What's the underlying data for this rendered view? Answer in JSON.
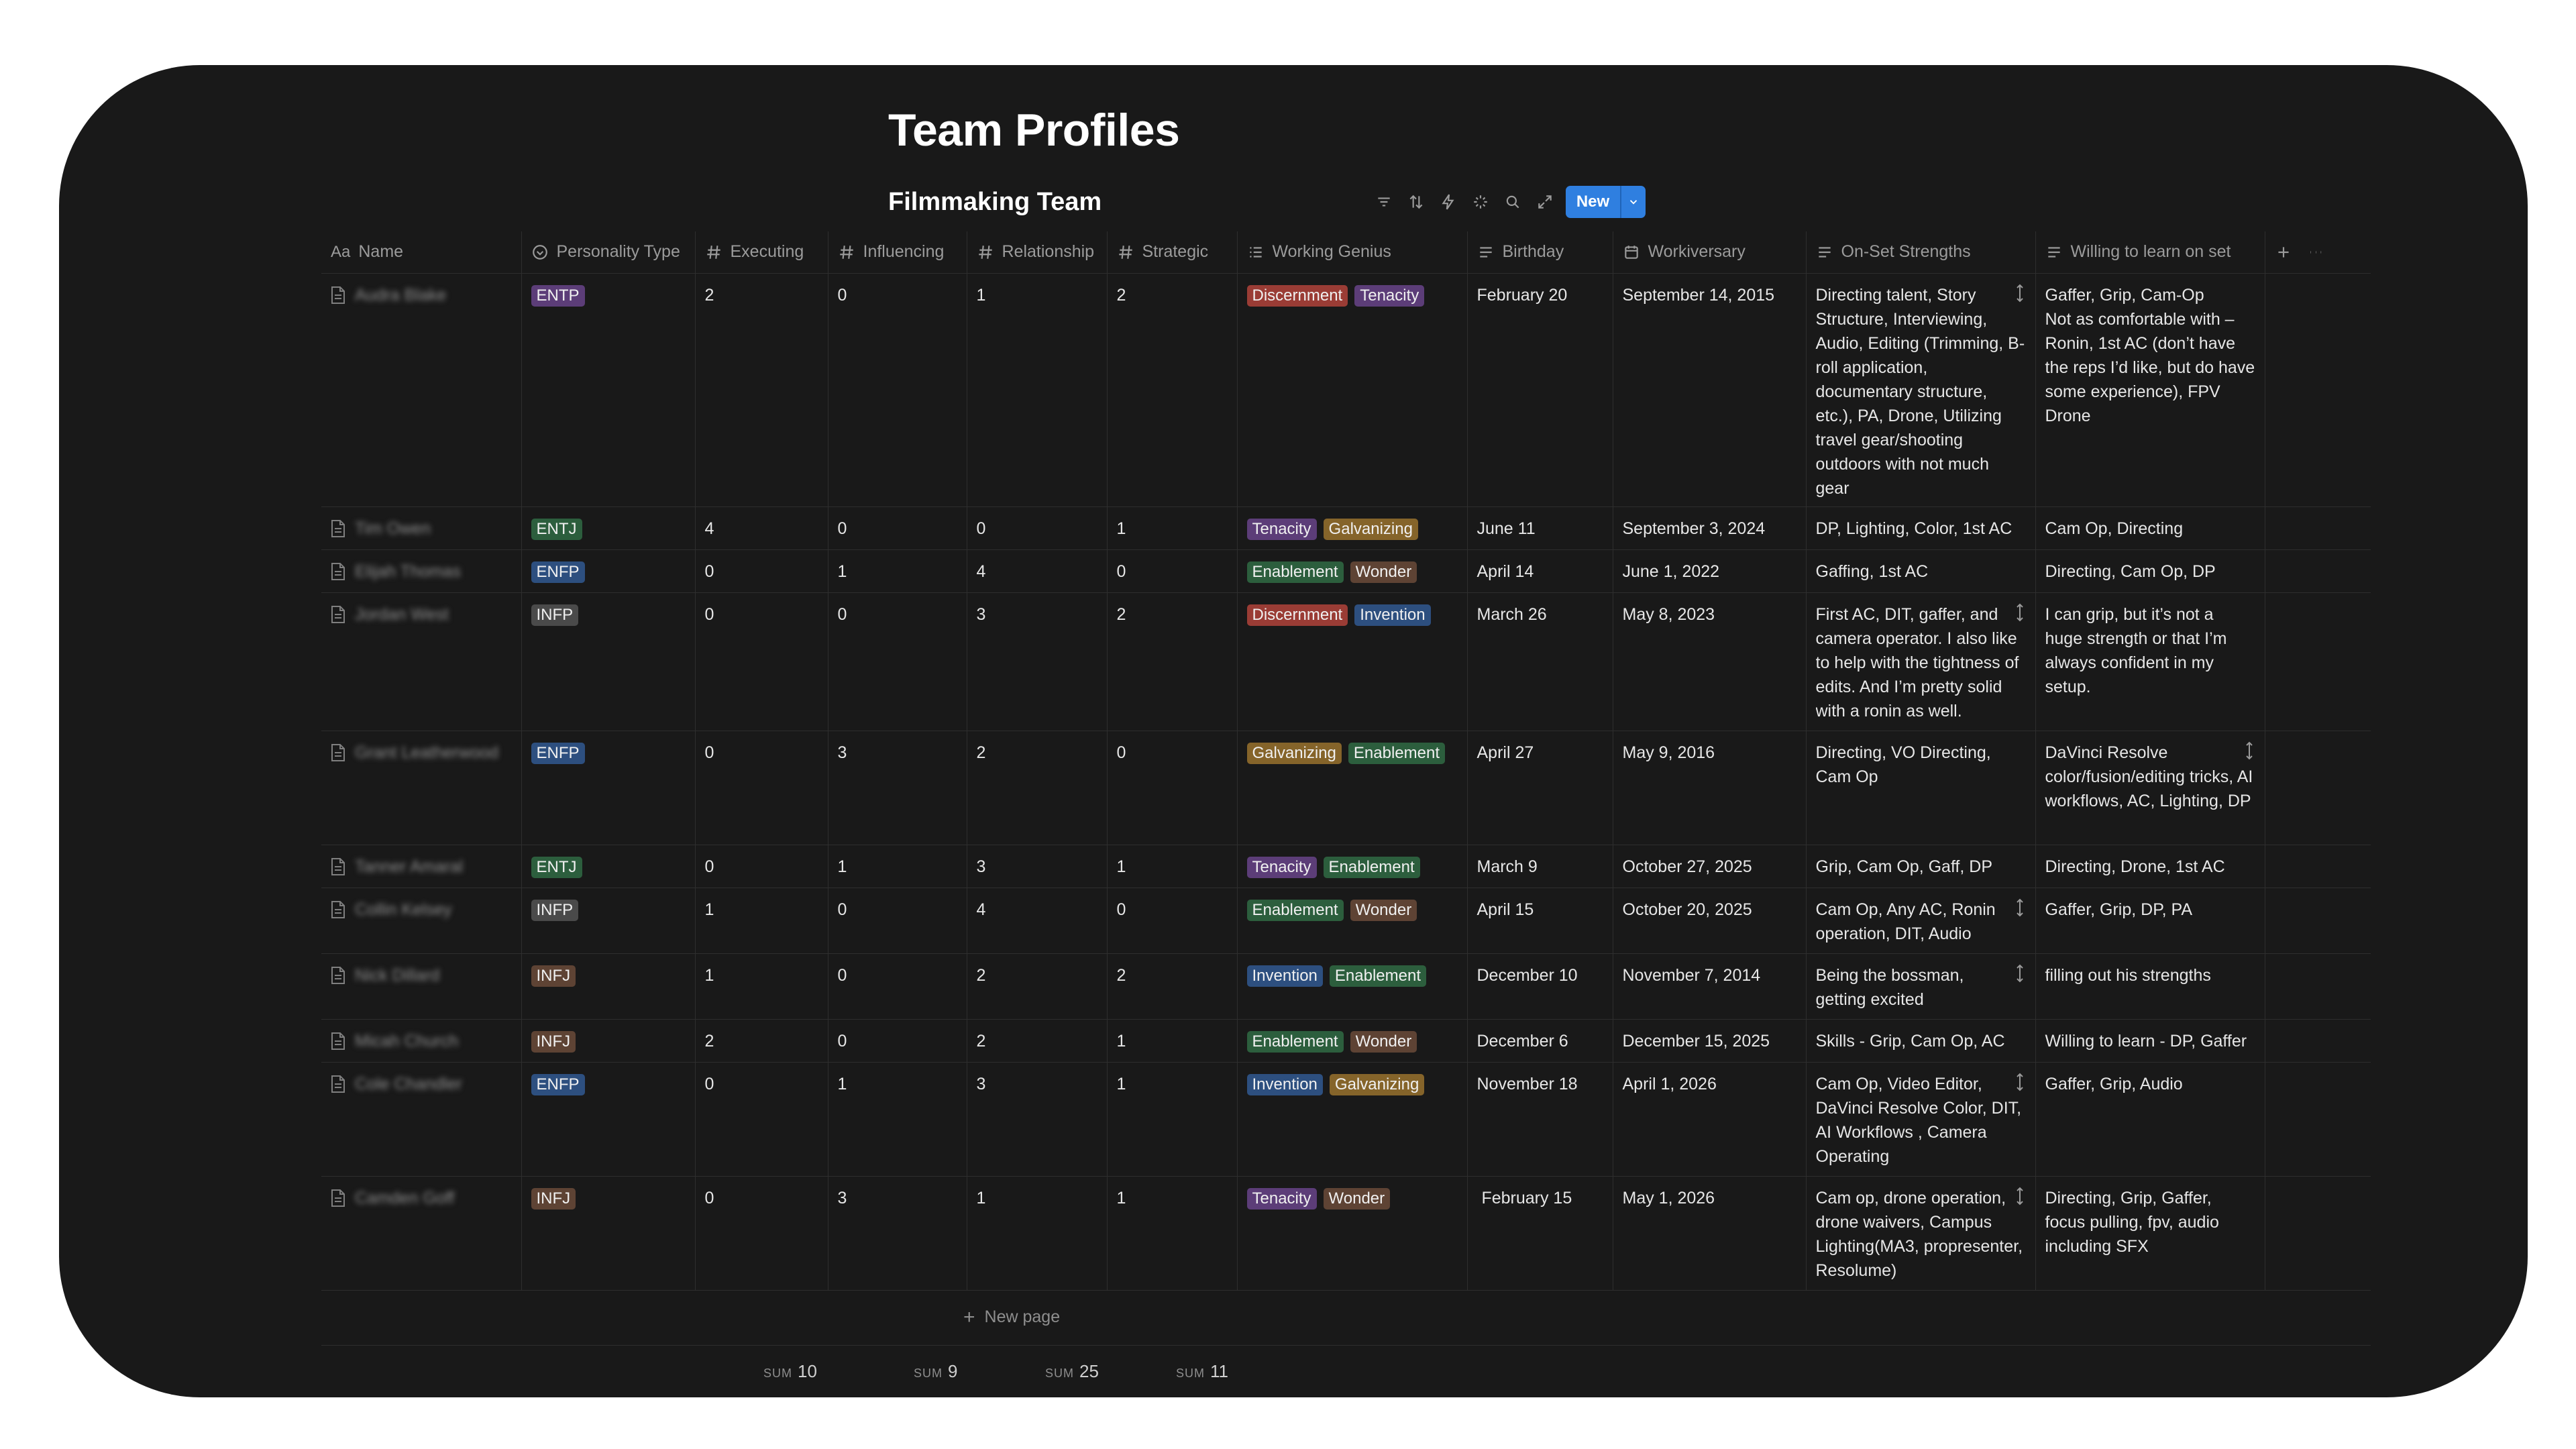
{
  "page": {
    "title": "Team Profiles"
  },
  "view": {
    "title": "Filmmaking Team",
    "new_label": "New"
  },
  "toolbar_icons": [
    "filter-icon",
    "sort-icon",
    "automation-icon",
    "ai-icon",
    "search-icon",
    "expand-icon",
    "settings-icon"
  ],
  "columns": [
    {
      "key": "name",
      "label": "Name",
      "icon": "title-icon"
    },
    {
      "key": "ptype",
      "label": "Personality Type",
      "icon": "select-icon"
    },
    {
      "key": "exec",
      "label": "Executing",
      "icon": "number-icon"
    },
    {
      "key": "infl",
      "label": "Influencing",
      "icon": "number-icon"
    },
    {
      "key": "rel",
      "label": "Relationship",
      "icon": "number-icon"
    },
    {
      "key": "strat",
      "label": "Strategic",
      "icon": "number-icon"
    },
    {
      "key": "genius",
      "label": "Working Genius",
      "icon": "multi-select-icon"
    },
    {
      "key": "bday",
      "label": "Birthday",
      "icon": "text-icon"
    },
    {
      "key": "anniv",
      "label": "Workiversary",
      "icon": "date-icon"
    },
    {
      "key": "strengths",
      "label": "On-Set Strengths",
      "icon": "text-icon"
    },
    {
      "key": "learn",
      "label": "Willing to learn on set",
      "icon": "text-icon"
    }
  ],
  "tag_colors": {
    "ENTP": "#5c3d78",
    "ENTJ": "#2c5e3d",
    "ENFP": "#2d4f7f",
    "INFP": "#4a4a4a",
    "INFJ": "#5e4334",
    "Discernment": "#9a3c35",
    "Tenacity": "#5c3d78",
    "Galvanizing": "#85642a",
    "Enablement": "#2c5e3d",
    "Wonder": "#5e4334",
    "Invention": "#2d4f7f"
  },
  "rows": [
    {
      "name": "Audra Blake",
      "ptype": "ENTP",
      "exec": "2",
      "infl": "0",
      "rel": "1",
      "strat": "2",
      "genius": [
        "Discernment",
        "Tenacity"
      ],
      "bday": "February 20",
      "anniv": "September 14, 2015",
      "strengths": "Directing talent, Story Structure, Interviewing, Audio, Editing (Trimming, B-roll application, documentary structure, etc.), PA, Drone, Utilizing travel gear/shooting outdoors with not much gear",
      "learn": "Gaffer, Grip, Cam-Op\nNot as comfortable with – Ronin, 1st AC (don’t have the reps I’d like, but do have some experience), FPV Drone"
    },
    {
      "name": "Tim Owen",
      "ptype": "ENTJ",
      "exec": "4",
      "infl": "0",
      "rel": "0",
      "strat": "1",
      "genius": [
        "Tenacity",
        "Galvanizing"
      ],
      "bday": "June 11",
      "anniv": "September 3, 2024",
      "strengths": "DP, Lighting, Color, 1st AC",
      "learn": "Cam Op, Directing"
    },
    {
      "name": "Elijah Thomas",
      "ptype": "ENFP",
      "exec": "0",
      "infl": "1",
      "rel": "4",
      "strat": "0",
      "genius": [
        "Enablement",
        "Wonder"
      ],
      "bday": "April 14",
      "anniv": "June 1, 2022",
      "strengths": "Gaffing, 1st AC",
      "learn": "Directing, Cam Op, DP"
    },
    {
      "name": "Jordan West",
      "ptype": "INFP",
      "exec": "0",
      "infl": "0",
      "rel": "3",
      "strat": "2",
      "genius": [
        "Discernment",
        "Invention"
      ],
      "bday": "March 26",
      "anniv": "May 8, 2023",
      "strengths": "First AC, DIT, gaffer, and camera operator. I also like to help with the tightness of edits. And I’m pretty solid with a ronin as well.",
      "learn": "I can grip, but it’s not a huge strength or that I’m always confident in my setup."
    },
    {
      "name": "Grant Leatherwood",
      "ptype": "ENFP",
      "exec": "0",
      "infl": "3",
      "rel": "2",
      "strat": "0",
      "genius": [
        "Galvanizing",
        "Enablement"
      ],
      "bday": "April 27",
      "anniv": "May 9, 2016",
      "strengths": "Directing, VO Directing, Cam Op",
      "learn": "DaVinci Resolve color/fusion/editing tricks, AI workflows, AC, Lighting, DP"
    },
    {
      "name": "Tanner Amaral",
      "ptype": "ENTJ",
      "exec": "0",
      "infl": "1",
      "rel": "3",
      "strat": "1",
      "genius": [
        "Tenacity",
        "Enablement"
      ],
      "bday": "March 9",
      "anniv": "October 27, 2025",
      "strengths": "Grip, Cam Op, Gaff, DP",
      "learn": "Directing, Drone, 1st AC"
    },
    {
      "name": "Collin Kelsey",
      "ptype": "INFP",
      "exec": "1",
      "infl": "0",
      "rel": "4",
      "strat": "0",
      "genius": [
        "Enablement",
        "Wonder"
      ],
      "bday": "April 15",
      "anniv": "October 20, 2025",
      "strengths": "Cam Op, Any AC, Ronin operation, DIT, Audio",
      "learn": "Gaffer, Grip, DP, PA"
    },
    {
      "name": "Nick Dillard",
      "ptype": "INFJ",
      "exec": "1",
      "infl": "0",
      "rel": "2",
      "strat": "2",
      "genius": [
        "Invention",
        "Enablement"
      ],
      "bday": "December 10",
      "anniv": "November 7, 2014",
      "strengths": "Being the bossman, getting excited",
      "learn": "filling out his strengths"
    },
    {
      "name": "Micah Church",
      "ptype": "INFJ",
      "exec": "2",
      "infl": "0",
      "rel": "2",
      "strat": "1",
      "genius": [
        "Enablement",
        "Wonder"
      ],
      "bday": "December 6",
      "anniv": "December 15, 2025",
      "strengths": "Skills - Grip, Cam Op, AC",
      "learn": "Willing to learn - DP, Gaffer"
    },
    {
      "name": "Cole Chandler",
      "ptype": "ENFP",
      "exec": "0",
      "infl": "1",
      "rel": "3",
      "strat": "1",
      "genius": [
        "Invention",
        "Galvanizing"
      ],
      "bday": "November 18",
      "anniv": "April 1, 2026",
      "strengths": "Cam Op, Video Editor, DaVinci Resolve Color, DIT, AI Workflows , Camera Operating",
      "learn": "Gaffer, Grip, Audio"
    },
    {
      "name": "Camden Goff",
      "ptype": "INFJ",
      "exec": "0",
      "infl": "3",
      "rel": "1",
      "strat": "1",
      "genius": [
        "Tenacity",
        "Wonder"
      ],
      "bday": " February 15",
      "anniv": "May 1, 2026",
      "strengths": "Cam op, drone operation, drone waivers, Campus Lighting(MA3, propresenter, Resolume)",
      "learn": "Directing, Grip, Gaffer, focus pulling, fpv, audio including SFX"
    }
  ],
  "new_page_label": "New page",
  "sums": {
    "label": "SUM",
    "exec": "10",
    "infl": "9",
    "rel": "25",
    "strat": "11"
  }
}
